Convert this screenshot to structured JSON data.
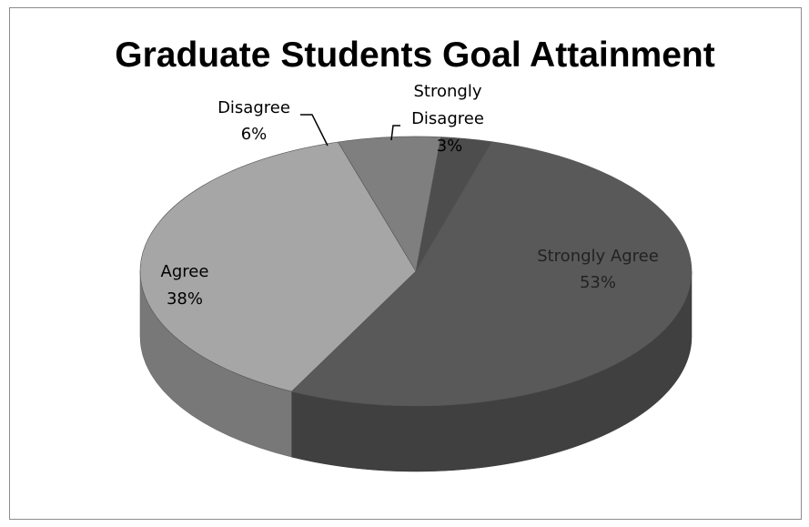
{
  "chart_data": {
    "type": "pie",
    "title": "Graduate Students Goal Attainment",
    "categories": [
      "Strongly Agree",
      "Agree",
      "Disagree",
      "Strongly Disagree"
    ],
    "values": [
      53,
      38,
      6,
      3
    ],
    "labels": [
      {
        "name": "Strongly Agree",
        "pct": "53%"
      },
      {
        "name": "Agree",
        "pct": "38%"
      },
      {
        "name": "Disagree",
        "pct": "6%"
      },
      {
        "name": "Strongly Disagree",
        "pct": "3%"
      }
    ],
    "colors": [
      "#595959",
      "#a6a6a6",
      "#7f7f7f",
      "#4d4d4d"
    ],
    "legend": "none"
  }
}
